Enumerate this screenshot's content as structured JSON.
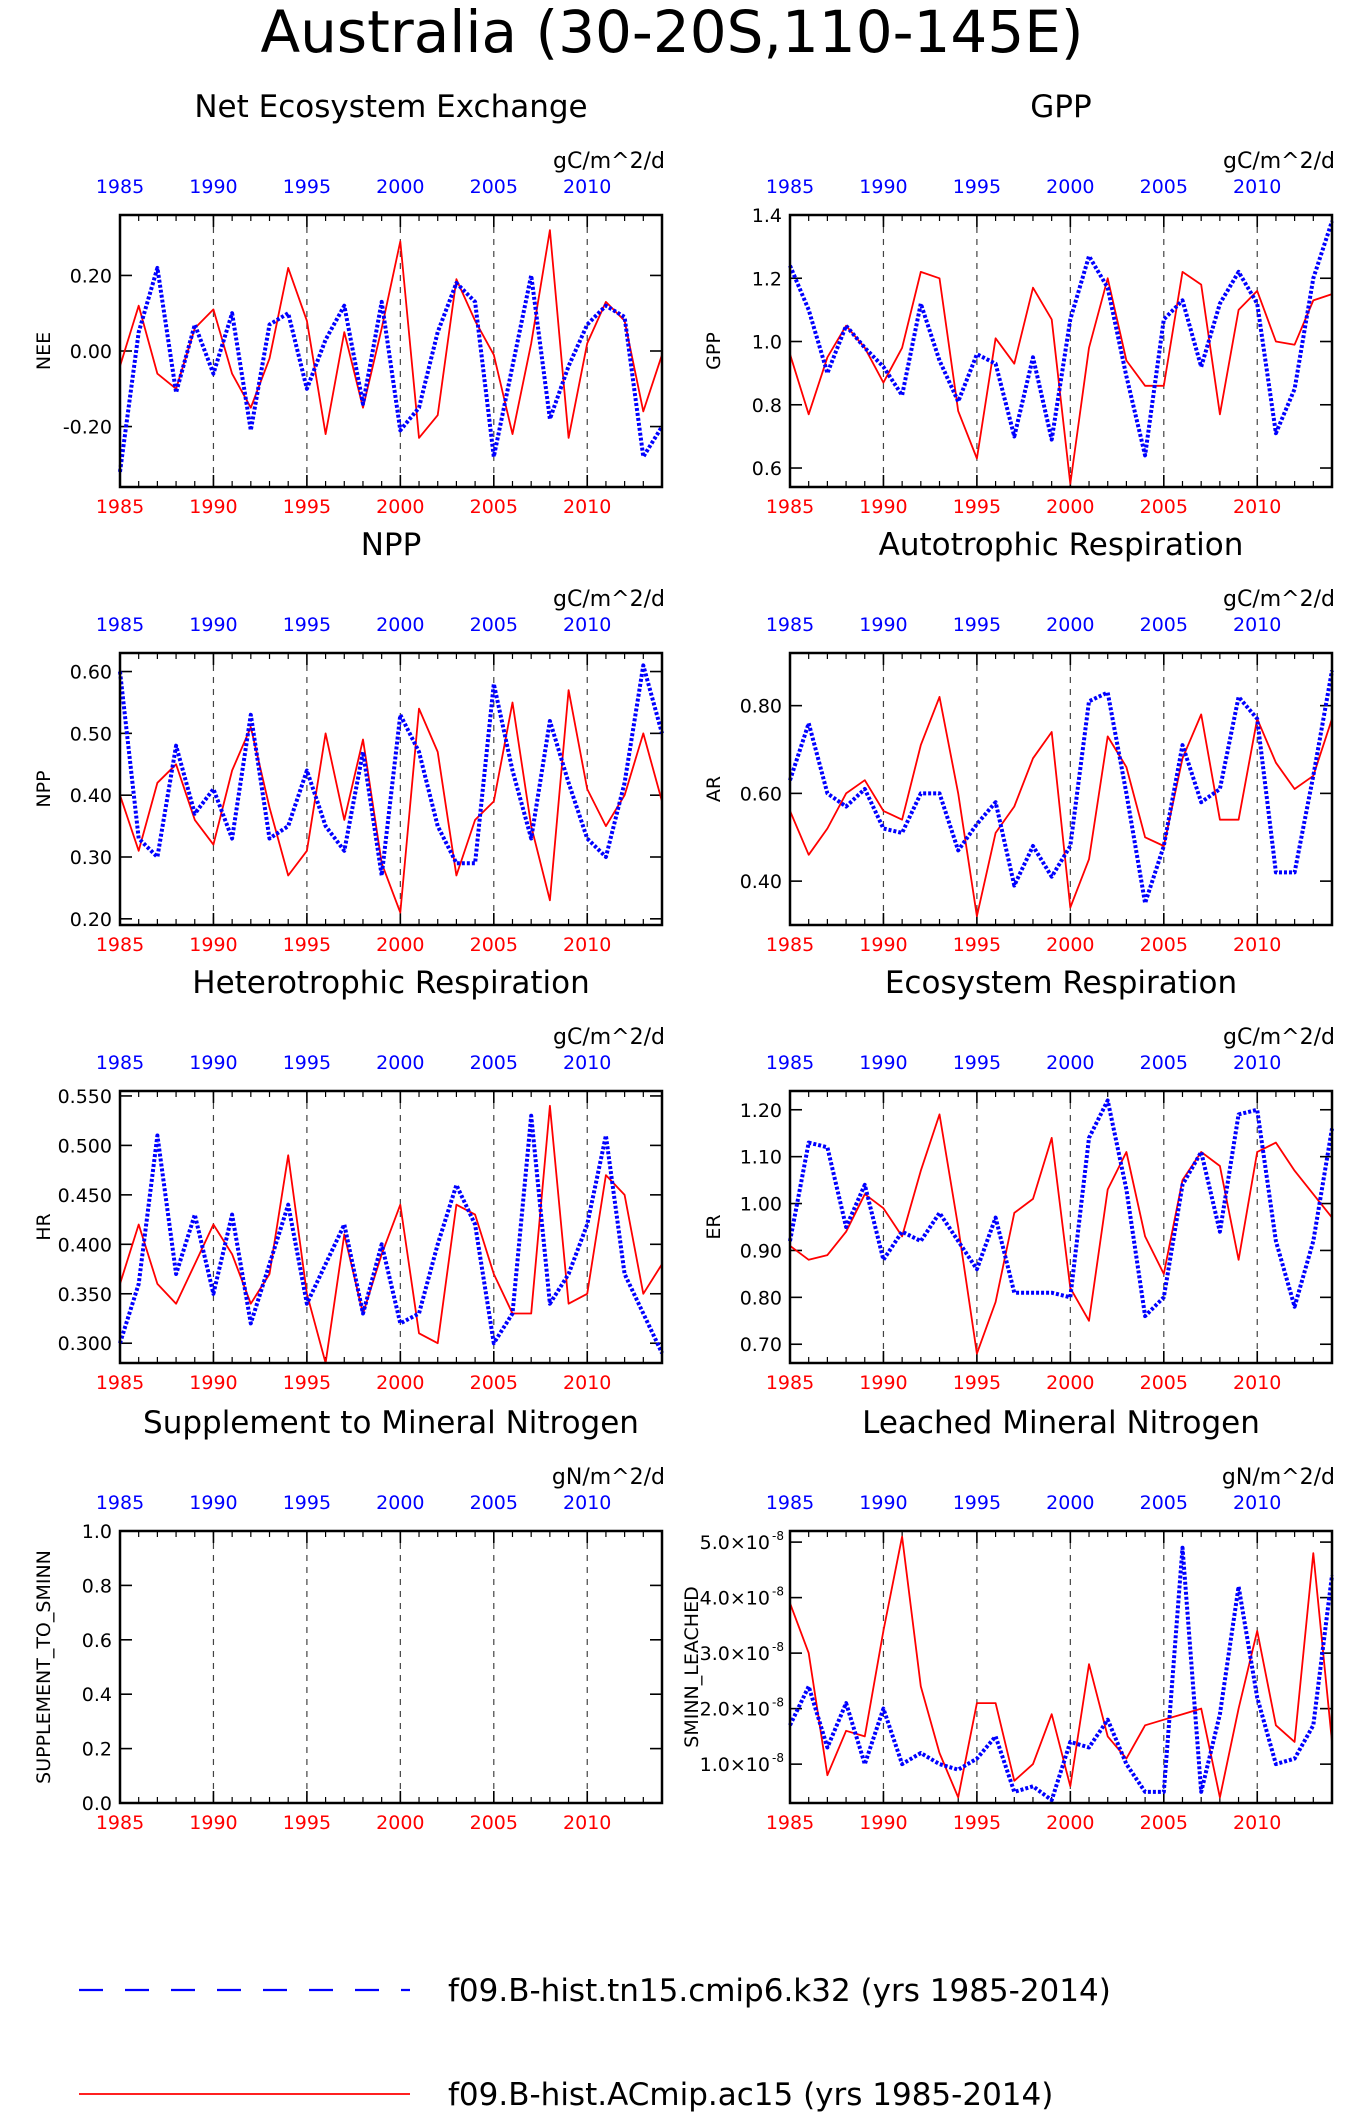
{
  "figure": {
    "title": "Australia (30-20S,110-145E)",
    "legend": [
      {
        "name": "f09.B-hist.tn15.cmip6.k32 (yrs 1985-2014)",
        "color": "#0000ff",
        "style": "dashed"
      },
      {
        "name": "f09.B-hist.ACmip.ac15 (yrs 1985-2014)",
        "color": "#ff0000",
        "style": "solid"
      }
    ]
  },
  "chart_data": [
    {
      "type": "line",
      "title": "Net Ecosystem Exchange",
      "units": "gC/m^2/d",
      "ylabel": "NEE",
      "xlim": [
        1985,
        2014
      ],
      "ylim": [
        -0.36,
        0.36
      ],
      "yticks": [
        -0.2,
        0.0,
        0.2
      ],
      "ytick_labels": [
        "-0.20",
        "0.00",
        "0.20"
      ],
      "xticks": [
        1985,
        1990,
        1995,
        2000,
        2005,
        2010
      ],
      "series": [
        {
          "name": "f09.B-hist.ACmip.ac15 (yrs 1985-2014)",
          "color": "#ff0000",
          "values": [
            -0.04,
            0.12,
            -0.06,
            -0.1,
            0.06,
            0.11,
            -0.06,
            -0.15,
            -0.02,
            0.22,
            0.08,
            -0.22,
            0.05,
            -0.15,
            0.06,
            0.29,
            -0.23,
            -0.17,
            0.19,
            0.08,
            -0.01,
            -0.22,
            0.02,
            0.32,
            -0.23,
            0.02,
            0.13,
            0.08,
            -0.16,
            -0.01
          ]
        },
        {
          "name": "f09.B-hist.tn15.cmip6.k32 (yrs 1985-2014)",
          "color": "#0000ff",
          "values": [
            -0.32,
            0.05,
            0.22,
            -0.11,
            0.07,
            -0.06,
            0.1,
            -0.21,
            0.07,
            0.1,
            -0.1,
            0.03,
            0.12,
            -0.14,
            0.13,
            -0.21,
            -0.15,
            0.05,
            0.18,
            0.13,
            -0.28,
            -0.04,
            0.2,
            -0.18,
            -0.04,
            0.07,
            0.12,
            0.09,
            -0.28,
            -0.2
          ]
        }
      ]
    },
    {
      "type": "line",
      "title": "GPP",
      "units": "gC/m^2/d",
      "ylabel": "GPP",
      "xlim": [
        1985,
        2014
      ],
      "ylim": [
        0.54,
        1.4
      ],
      "yticks": [
        0.6,
        0.8,
        1.0,
        1.2,
        1.4
      ],
      "ytick_labels": [
        "0.6",
        "0.8",
        "1.0",
        "1.2",
        "1.4"
      ],
      "xticks": [
        1985,
        1990,
        1995,
        2000,
        2005,
        2010
      ],
      "series": [
        {
          "name": "f09.B-hist.ACmip.ac15 (yrs 1985-2014)",
          "color": "#ff0000",
          "values": [
            0.96,
            0.77,
            0.95,
            1.05,
            0.98,
            0.87,
            0.98,
            1.22,
            1.2,
            0.78,
            0.63,
            1.01,
            0.93,
            1.17,
            1.07,
            0.55,
            0.98,
            1.2,
            0.94,
            0.86,
            0.86,
            1.22,
            1.18,
            0.77,
            1.1,
            1.16,
            1.0,
            0.99,
            1.13,
            1.15
          ]
        },
        {
          "name": "f09.B-hist.tn15.cmip6.k32 (yrs 1985-2014)",
          "color": "#0000ff",
          "values": [
            1.24,
            1.1,
            0.9,
            1.05,
            0.98,
            0.92,
            0.83,
            1.12,
            0.94,
            0.81,
            0.96,
            0.93,
            0.7,
            0.95,
            0.69,
            1.07,
            1.27,
            1.17,
            0.89,
            0.64,
            1.07,
            1.13,
            0.92,
            1.12,
            1.22,
            1.12,
            0.71,
            0.85,
            1.2,
            1.38
          ]
        }
      ]
    },
    {
      "type": "line",
      "title": "NPP",
      "units": "gC/m^2/d",
      "ylabel": "NPP",
      "xlim": [
        1985,
        2014
      ],
      "ylim": [
        0.19,
        0.63
      ],
      "yticks": [
        0.2,
        0.3,
        0.4,
        0.5,
        0.6
      ],
      "ytick_labels": [
        "0.20",
        "0.30",
        "0.40",
        "0.50",
        "0.60"
      ],
      "xticks": [
        1985,
        1990,
        1995,
        2000,
        2005,
        2010
      ],
      "series": [
        {
          "name": "f09.B-hist.ACmip.ac15 (yrs 1985-2014)",
          "color": "#ff0000",
          "values": [
            0.4,
            0.31,
            0.42,
            0.45,
            0.36,
            0.32,
            0.44,
            0.51,
            0.38,
            0.27,
            0.31,
            0.5,
            0.36,
            0.49,
            0.29,
            0.21,
            0.54,
            0.47,
            0.27,
            0.36,
            0.39,
            0.55,
            0.35,
            0.23,
            0.57,
            0.41,
            0.35,
            0.4,
            0.5,
            0.39
          ]
        },
        {
          "name": "f09.B-hist.tn15.cmip6.k32 (yrs 1985-2014)",
          "color": "#0000ff",
          "values": [
            0.6,
            0.33,
            0.3,
            0.48,
            0.37,
            0.41,
            0.33,
            0.53,
            0.33,
            0.35,
            0.44,
            0.35,
            0.31,
            0.47,
            0.27,
            0.53,
            0.47,
            0.35,
            0.29,
            0.29,
            0.58,
            0.44,
            0.33,
            0.52,
            0.42,
            0.33,
            0.3,
            0.42,
            0.61,
            0.5
          ]
        }
      ]
    },
    {
      "type": "line",
      "title": "Autotrophic Respiration",
      "units": "gC/m^2/d",
      "ylabel": "AR",
      "xlim": [
        1985,
        2014
      ],
      "ylim": [
        0.3,
        0.92
      ],
      "yticks": [
        0.4,
        0.6,
        0.8
      ],
      "ytick_labels": [
        "0.40",
        "0.60",
        "0.80"
      ],
      "xticks": [
        1985,
        1990,
        1995,
        2000,
        2005,
        2010
      ],
      "series": [
        {
          "name": "f09.B-hist.ACmip.ac15 (yrs 1985-2014)",
          "color": "#ff0000",
          "values": [
            0.56,
            0.46,
            0.52,
            0.6,
            0.63,
            0.56,
            0.54,
            0.71,
            0.82,
            0.6,
            0.32,
            0.51,
            0.57,
            0.68,
            0.74,
            0.34,
            0.45,
            0.73,
            0.66,
            0.5,
            0.48,
            0.68,
            0.78,
            0.54,
            0.54,
            0.77,
            0.67,
            0.61,
            0.64,
            0.77
          ]
        },
        {
          "name": "f09.B-hist.tn15.cmip6.k32 (yrs 1985-2014)",
          "color": "#0000ff",
          "values": [
            0.63,
            0.76,
            0.6,
            0.57,
            0.61,
            0.52,
            0.51,
            0.6,
            0.6,
            0.47,
            0.53,
            0.58,
            0.39,
            0.48,
            0.41,
            0.48,
            0.81,
            0.83,
            0.6,
            0.35,
            0.48,
            0.71,
            0.58,
            0.61,
            0.82,
            0.77,
            0.42,
            0.42,
            0.64,
            0.88
          ]
        }
      ]
    },
    {
      "type": "line",
      "title": "Heterotrophic Respiration",
      "units": "gC/m^2/d",
      "ylabel": "HR",
      "xlim": [
        1985,
        2014
      ],
      "ylim": [
        0.28,
        0.555
      ],
      "yticks": [
        0.3,
        0.35,
        0.4,
        0.45,
        0.5,
        0.55
      ],
      "ytick_labels": [
        "0.300",
        "0.350",
        "0.400",
        "0.450",
        "0.500",
        "0.550"
      ],
      "xticks": [
        1985,
        1990,
        1995,
        2000,
        2005,
        2010
      ],
      "series": [
        {
          "name": "f09.B-hist.ACmip.ac15 (yrs 1985-2014)",
          "color": "#ff0000",
          "values": [
            0.36,
            0.42,
            0.36,
            0.34,
            0.38,
            0.42,
            0.39,
            0.34,
            0.37,
            0.49,
            0.35,
            0.28,
            0.41,
            0.33,
            0.39,
            0.44,
            0.31,
            0.3,
            0.44,
            0.43,
            0.37,
            0.33,
            0.33,
            0.54,
            0.34,
            0.35,
            0.47,
            0.45,
            0.35,
            0.38
          ]
        },
        {
          "name": "f09.B-hist.tn15.cmip6.k32 (yrs 1985-2014)",
          "color": "#0000ff",
          "values": [
            0.3,
            0.36,
            0.51,
            0.37,
            0.43,
            0.35,
            0.43,
            0.32,
            0.38,
            0.44,
            0.34,
            0.38,
            0.42,
            0.33,
            0.4,
            0.32,
            0.33,
            0.4,
            0.46,
            0.42,
            0.3,
            0.33,
            0.53,
            0.34,
            0.37,
            0.42,
            0.51,
            0.37,
            0.33,
            0.29
          ]
        }
      ]
    },
    {
      "type": "line",
      "title": "Ecosystem Respiration",
      "units": "gC/m^2/d",
      "ylabel": "ER",
      "xlim": [
        1985,
        2014
      ],
      "ylim": [
        0.66,
        1.24
      ],
      "yticks": [
        0.7,
        0.8,
        0.9,
        1.0,
        1.1,
        1.2
      ],
      "ytick_labels": [
        "0.70",
        "0.80",
        "0.90",
        "1.00",
        "1.10",
        "1.20"
      ],
      "xticks": [
        1985,
        1990,
        1995,
        2000,
        2005,
        2010
      ],
      "series": [
        {
          "name": "f09.B-hist.ACmip.ac15 (yrs 1985-2014)",
          "color": "#ff0000",
          "values": [
            0.91,
            0.88,
            0.89,
            0.94,
            1.02,
            0.99,
            0.93,
            1.07,
            1.19,
            0.95,
            0.68,
            0.79,
            0.98,
            1.01,
            1.14,
            0.82,
            0.75,
            1.03,
            1.11,
            0.93,
            0.85,
            1.05,
            1.11,
            1.08,
            0.88,
            1.11,
            1.13,
            1.07,
            1.02,
            0.97
          ]
        },
        {
          "name": "f09.B-hist.tn15.cmip6.k32 (yrs 1985-2014)",
          "color": "#0000ff",
          "values": [
            0.92,
            1.13,
            1.12,
            0.95,
            1.04,
            0.88,
            0.94,
            0.92,
            0.98,
            0.92,
            0.86,
            0.97,
            0.81,
            0.81,
            0.81,
            0.8,
            1.14,
            1.22,
            1.03,
            0.76,
            0.8,
            1.04,
            1.11,
            0.94,
            1.19,
            1.2,
            0.92,
            0.78,
            0.92,
            1.16
          ]
        }
      ]
    },
    {
      "type": "line",
      "title": "Supplement to Mineral Nitrogen",
      "units": "gN/m^2/d",
      "ylabel": "SUPPLEMENT_TO_SMINN",
      "xlim": [
        1985,
        2014
      ],
      "ylim": [
        0.0,
        1.0
      ],
      "yticks": [
        0.0,
        0.2,
        0.4,
        0.6,
        0.8,
        1.0
      ],
      "ytick_labels": [
        "0.0",
        "0.2",
        "0.4",
        "0.6",
        "0.8",
        "1.0"
      ],
      "xticks": [
        1985,
        1990,
        1995,
        2000,
        2005,
        2010
      ],
      "series": []
    },
    {
      "type": "line",
      "title": "Leached Mineral Nitrogen",
      "units": "gN/m^2/d",
      "ylabel": "SMINN_LEACHED",
      "xlim": [
        1985,
        2014
      ],
      "ylim": [
        3e-09,
        5.2e-08
      ],
      "yticks": [
        1e-08,
        2e-08,
        3e-08,
        4e-08,
        5e-08
      ],
      "ytick_labels": [
        "1.0×10",
        "2.0×10",
        "3.0×10",
        "4.0×10",
        "5.0×10"
      ],
      "ytick_exponent": "-8",
      "xticks": [
        1985,
        1990,
        1995,
        2000,
        2005,
        2010
      ],
      "series": [
        {
          "name": "f09.B-hist.ACmip.ac15 (yrs 1985-2014)",
          "color": "#ff0000",
          "values": [
            3.9e-08,
            3e-08,
            8e-09,
            1.6e-08,
            1.5e-08,
            3.4e-08,
            5.1e-08,
            2.4e-08,
            1.2e-08,
            4e-09,
            2.1e-08,
            2.1e-08,
            7e-09,
            1e-08,
            1.9e-08,
            6e-09,
            2.8e-08,
            1.5e-08,
            1.1e-08,
            1.7e-08,
            1.8e-08,
            1.9e-08,
            2e-08,
            4e-09,
            2e-08,
            3.4e-08,
            1.7e-08,
            1.4e-08,
            4.8e-08,
            1.4e-08
          ]
        },
        {
          "name": "f09.B-hist.tn15.cmip6.k32 (yrs 1985-2014)",
          "color": "#0000ff",
          "values": [
            1.7e-08,
            2.4e-08,
            1.3e-08,
            2.1e-08,
            1e-08,
            2e-08,
            1e-08,
            1.2e-08,
            1e-08,
            9e-09,
            1.1e-08,
            1.5e-08,
            5e-09,
            6e-09,
            3.5e-09,
            1.4e-08,
            1.3e-08,
            1.8e-08,
            1e-08,
            5e-09,
            5e-09,
            4.9e-08,
            5e-09,
            1.9e-08,
            4.2e-08,
            2.2e-08,
            1e-08,
            1.1e-08,
            1.7e-08,
            4.4e-08
          ]
        }
      ]
    }
  ]
}
